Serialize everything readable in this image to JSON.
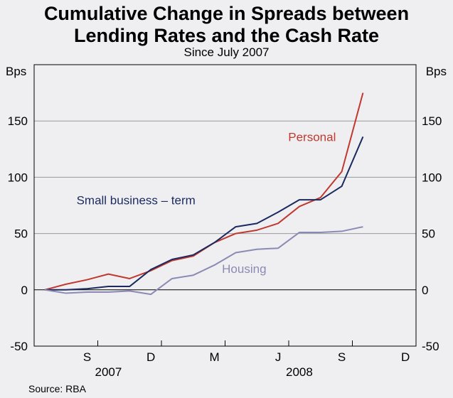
{
  "header": {
    "title_line1": "Cumulative Change in Spreads between",
    "title_line2": "Lending Rates and the Cash Rate",
    "subtitle": "Since July 2007"
  },
  "axes": {
    "left_unit": "Bps",
    "right_unit": "Bps"
  },
  "footer": {
    "source": "Source: RBA"
  },
  "chart_data": {
    "type": "line",
    "title": "Cumulative Change in Spreads between Lending Rates and the Cash Rate",
    "subtitle": "Since July 2007",
    "ylabel": "Bps",
    "ylim": [
      -50,
      200
    ],
    "yticks": [
      -50,
      0,
      50,
      100,
      150
    ],
    "grid": true,
    "x_start": "2007-07",
    "x_end": "2008-12",
    "month_labels": [
      {
        "label": "S",
        "month_index": 2
      },
      {
        "label": "D",
        "month_index": 5
      },
      {
        "label": "M",
        "month_index": 8
      },
      {
        "label": "J",
        "month_index": 11
      },
      {
        "label": "S",
        "month_index": 14
      },
      {
        "label": "D",
        "month_index": 17
      }
    ],
    "year_labels": [
      {
        "label": "2007",
        "month_index": 3
      },
      {
        "label": "2008",
        "month_index": 12
      }
    ],
    "x": [
      0,
      1,
      2,
      3,
      4,
      5,
      6,
      7,
      8,
      9,
      10,
      11,
      12,
      13,
      14,
      15,
      16
    ],
    "series": [
      {
        "name": "Personal",
        "color": "#c0392f",
        "label_pos": {
          "month_index": 12.6,
          "value": 132
        },
        "values": [
          0,
          5,
          9,
          14,
          10,
          17,
          26,
          30,
          42,
          50,
          53,
          59,
          74,
          82,
          105,
          175,
          null
        ]
      },
      {
        "name": "Small business – term",
        "color": "#1a2a5e",
        "label_pos": {
          "month_index": 4.3,
          "value": 76
        },
        "values": [
          0,
          0,
          1,
          3,
          3,
          18,
          27,
          31,
          42,
          56,
          59,
          69,
          80,
          80,
          92,
          136,
          null
        ]
      },
      {
        "name": "Housing",
        "color": "#8a8ab5",
        "label_pos": {
          "month_index": 9.4,
          "value": 15
        },
        "values": [
          0,
          -3,
          -2,
          -2,
          -1,
          -4,
          10,
          13,
          22,
          33,
          36,
          37,
          51,
          51,
          52,
          56,
          null
        ]
      }
    ]
  }
}
